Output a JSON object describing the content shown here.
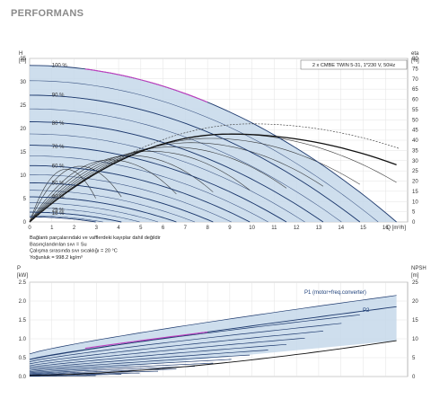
{
  "page_title": "PERFORMANS",
  "colors": {
    "envelope": "#c6d8ea",
    "curve": "#1e3a6e",
    "highlight": "#c040c0",
    "eff": "#111111"
  },
  "chart_data": [
    {
      "type": "line",
      "legend": "2 x CMBE TWIN 5-31, 1*230 V, 50Hz",
      "xlabel": "Q [m³/h]",
      "ylabel_top": "H",
      "ylabel_unit": "[m]",
      "y2label_top": "eta",
      "y2label_unit": "[%]",
      "xlim": [
        0,
        17
      ],
      "xticks": [
        "0",
        "1",
        "2",
        "3",
        "4",
        "5",
        "6",
        "7",
        "8",
        "9",
        "10",
        "11",
        "12",
        "13",
        "14",
        "15",
        "16"
      ],
      "ylim": [
        0,
        35
      ],
      "yticks": [
        "0",
        "5",
        "10",
        "15",
        "20",
        "25",
        "30",
        "35"
      ],
      "y2lim": [
        0,
        80
      ],
      "y2ticks": [
        "0",
        "5",
        "10",
        "15",
        "20",
        "25",
        "30",
        "35",
        "40",
        "45",
        "50",
        "55",
        "60",
        "65",
        "70",
        "75",
        "80"
      ],
      "speed_labels": [
        {
          "text": "100 %",
          "x": 1.0,
          "y": 33.0
        },
        {
          "text": "90 %",
          "x": 1.0,
          "y": 26.6
        },
        {
          "text": "80 %",
          "x": 1.0,
          "y": 20.6
        },
        {
          "text": "70 %",
          "x": 1.0,
          "y": 15.6
        },
        {
          "text": "60 %",
          "x": 1.0,
          "y": 11.4
        },
        {
          "text": "50 %",
          "x": 1.0,
          "y": 7.8
        },
        {
          "text": "40 %",
          "x": 1.0,
          "y": 4.9
        },
        {
          "text": "25 %",
          "x": 1.0,
          "y": 2.0
        },
        {
          "text": "18 %",
          "x": 1.0,
          "y": 1.3
        }
      ],
      "speeds": [
        1.0,
        0.9,
        0.8,
        0.7,
        0.6,
        0.5,
        0.4,
        0.25,
        0.18
      ],
      "max_head": 33.5,
      "max_flow": 16.5,
      "notes": [
        "Bağlantı parçalarındaki ve vafflerdeki kayıplar dahil değildir",
        "Basınçlandırılan sıvı = Su",
        "Çalışma sırasında sıvı sıcaklığı = 20 °C",
        "Yoğunluk = 998.2 kg/m³"
      ]
    },
    {
      "type": "line",
      "ylabel_top": "P",
      "ylabel_unit": "[kW]",
      "y2label_top": "NPSH",
      "y2label_unit": "[m]",
      "xlim": [
        0,
        17
      ],
      "ylim": [
        0,
        2.5
      ],
      "yticks": [
        "0.0",
        "0.5",
        "1.0",
        "1.5",
        "2.0",
        "2.5"
      ],
      "y2lim": [
        0,
        25
      ],
      "y2ticks": [
        "0",
        "5",
        "10",
        "15",
        "20",
        "25"
      ],
      "series": [
        {
          "name": "P1 (motor+freq.converter)",
          "p0": 0.6,
          "p1": 2.15
        },
        {
          "name": "P2",
          "p0": 0.45,
          "p1": 1.85
        }
      ]
    }
  ]
}
